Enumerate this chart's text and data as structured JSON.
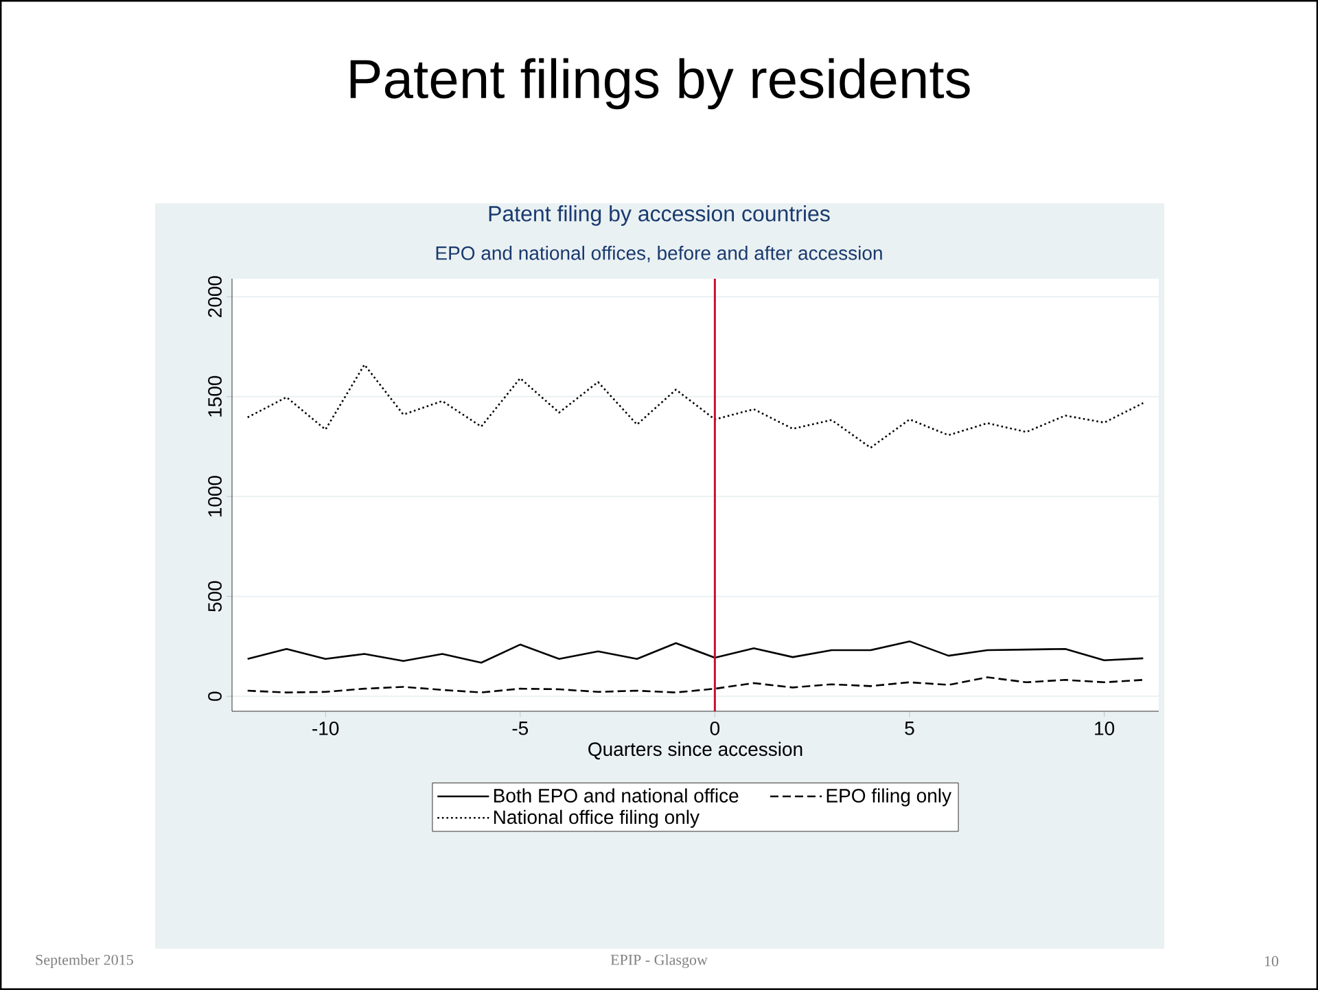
{
  "chart_data": {
    "type": "line",
    "title": "Patent filing by accession countries",
    "subtitle": "EPO and national offices, before and after accession",
    "xlabel": "Quarters since accession",
    "x": [
      -12,
      -11,
      -10,
      -9,
      -8,
      -7,
      -6,
      -5,
      -4,
      -3,
      -2,
      -1,
      0,
      1,
      2,
      3,
      4,
      5,
      6,
      7,
      8,
      9,
      10,
      11
    ],
    "series": [
      {
        "name": "Both EPO and national office",
        "color": "#000000",
        "line_style": "solid",
        "values": [
          187,
          237,
          187,
          212,
          177,
          212,
          168,
          259,
          187,
          225,
          187,
          266,
          193,
          240,
          196,
          231,
          231,
          275,
          203,
          231,
          234,
          237,
          180,
          190
        ]
      },
      {
        "name": "EPO filing only",
        "color": "#000000",
        "line_style": "dashed",
        "values": [
          28,
          19,
          22,
          38,
          47,
          32,
          19,
          38,
          35,
          22,
          28,
          19,
          38,
          66,
          44,
          60,
          51,
          70,
          57,
          95,
          70,
          82,
          70,
          82
        ]
      },
      {
        "name": "National office filing only",
        "color": "#000000",
        "line_style": "dotted",
        "values": [
          1396,
          1497,
          1335,
          1660,
          1410,
          1478,
          1350,
          1592,
          1420,
          1573,
          1360,
          1535,
          1386,
          1437,
          1339,
          1383,
          1244,
          1386,
          1307,
          1367,
          1323,
          1405,
          1370,
          1468
        ]
      }
    ],
    "xlim": [
      -12.4,
      11.4
    ],
    "ylim": [
      -75,
      2090
    ],
    "xticks": [
      -10,
      -5,
      0,
      5,
      10
    ],
    "yticks": [
      0,
      500,
      1000,
      1500,
      2000
    ],
    "ref_lines": [
      {
        "axis": "x",
        "value": 0,
        "color": "#c8102e"
      }
    ],
    "grid": "y",
    "legend": "bottom",
    "annotations": [
      "Patent filings by residents",
      "September 2015",
      "EPIP - Glasgow",
      "10"
    ]
  }
}
